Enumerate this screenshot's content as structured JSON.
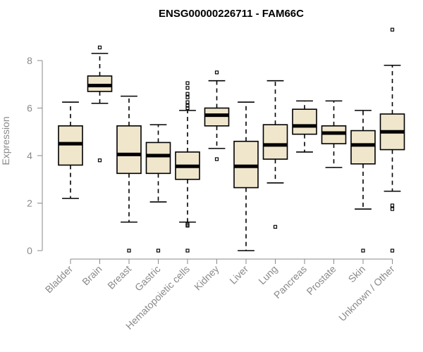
{
  "chart_data": {
    "type": "box",
    "title": "ENSG00000226711 - FAM66C",
    "ylabel": "Expression",
    "ylim": [
      0,
      9.4
    ],
    "yticks": [
      0,
      2,
      4,
      6,
      8
    ],
    "categories": [
      "Bladder",
      "Brain",
      "Breast",
      "Gastric",
      "Hematopoietic cells",
      "Kidney",
      "Liver",
      "Lung",
      "Pancreas",
      "Prostate",
      "Skin",
      "Unknown / Other"
    ],
    "boxes": [
      {
        "whislo": 2.2,
        "q1": 3.6,
        "med": 4.5,
        "q3": 5.25,
        "whishi": 6.25,
        "fliers": []
      },
      {
        "whislo": 6.2,
        "q1": 6.7,
        "med": 6.95,
        "q3": 7.35,
        "whishi": 8.3,
        "fliers": [
          3.8,
          8.55
        ]
      },
      {
        "whislo": 1.2,
        "q1": 3.25,
        "med": 4.05,
        "q3": 5.25,
        "whishi": 6.5,
        "fliers": [
          0
        ]
      },
      {
        "whislo": 2.05,
        "q1": 3.25,
        "med": 4.0,
        "q3": 4.55,
        "whishi": 5.3,
        "fliers": [
          0
        ]
      },
      {
        "whislo": 1.2,
        "q1": 3.0,
        "med": 3.55,
        "q3": 4.15,
        "whishi": 5.9,
        "fliers": [
          0,
          1.05,
          1.1,
          6.0,
          6.1,
          6.25,
          6.45,
          6.6,
          6.85,
          7.05
        ]
      },
      {
        "whislo": 4.3,
        "q1": 5.25,
        "med": 5.7,
        "q3": 6.0,
        "whishi": 7.15,
        "fliers": [
          3.85,
          7.5
        ]
      },
      {
        "whislo": 0.0,
        "q1": 2.65,
        "med": 3.55,
        "q3": 4.6,
        "whishi": 6.25,
        "fliers": []
      },
      {
        "whislo": 2.85,
        "q1": 3.85,
        "med": 4.45,
        "q3": 5.3,
        "whishi": 7.15,
        "fliers": [
          1.0
        ]
      },
      {
        "whislo": 4.15,
        "q1": 4.9,
        "med": 5.25,
        "q3": 5.95,
        "whishi": 6.3,
        "fliers": []
      },
      {
        "whislo": 3.5,
        "q1": 4.5,
        "med": 4.95,
        "q3": 5.25,
        "whishi": 6.3,
        "fliers": []
      },
      {
        "whislo": 1.75,
        "q1": 3.65,
        "med": 4.45,
        "q3": 5.05,
        "whishi": 5.9,
        "fliers": [
          0
        ]
      },
      {
        "whislo": 2.5,
        "q1": 4.25,
        "med": 5.0,
        "q3": 5.75,
        "whishi": 7.8,
        "fliers": [
          0,
          1.75,
          1.9,
          9.3
        ]
      }
    ],
    "colors": {
      "box_fill": "#efe6cc",
      "stroke": "#000000",
      "axis": "#8a8a8a"
    }
  }
}
